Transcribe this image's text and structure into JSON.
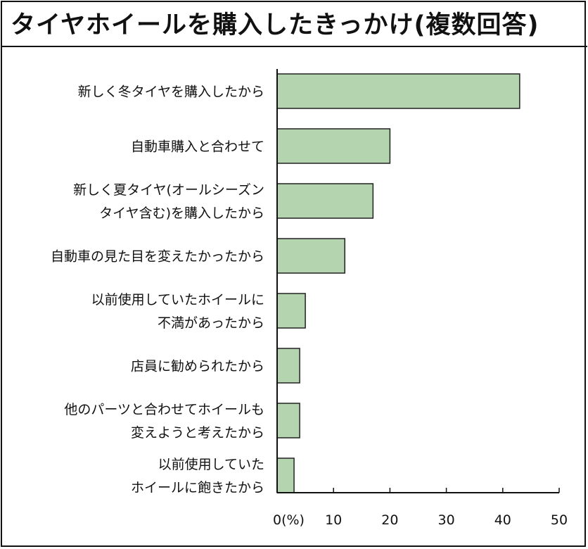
{
  "chart_data": {
    "type": "bar",
    "orientation": "horizontal",
    "title": "タイヤホイールを購入したきっかけ(複数回答)",
    "categories": [
      [
        "新しく冬タイヤを購入したから"
      ],
      [
        "自動車購入と合わせて"
      ],
      [
        "新しく夏タイヤ(オールシーズン",
        "タイヤ含む)を購入したから"
      ],
      [
        "自動車の見た目を変えたかったから"
      ],
      [
        "以前使用していたホイールに",
        "不満があったから"
      ],
      [
        "店員に勧められたから"
      ],
      [
        "他のパーツと合わせてホイールも",
        "変えようと考えたから"
      ],
      [
        "以前使用していた",
        "ホイールに飽きたから"
      ]
    ],
    "values": [
      43,
      20,
      17,
      12,
      5,
      4,
      4,
      3
    ],
    "xlim": [
      0,
      50
    ],
    "xticks": [
      "0(%)",
      "10",
      "20",
      "30",
      "40",
      "50"
    ],
    "xlabel": "",
    "ylabel": "",
    "bar_color": "#b3d4ae",
    "bar_stroke": "#222222",
    "grid": false
  }
}
